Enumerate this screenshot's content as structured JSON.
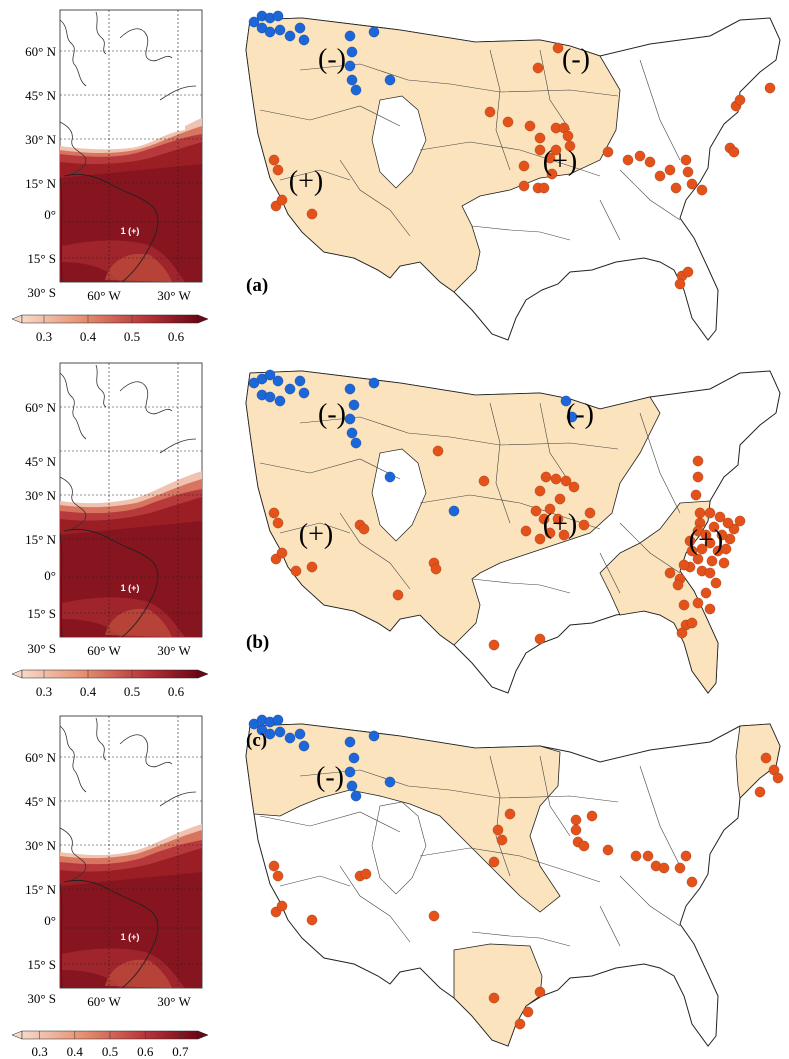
{
  "colors": {
    "basin_fill": "#fbe3bd",
    "negative_dot": "#1c66d8",
    "positive_dot": "#e3521b",
    "corr_low": "#f3cbbb",
    "corr_high": "#7a0a16"
  },
  "panels": [
    {
      "letter": "(a)",
      "lat_labels": [
        "60° N",
        "45° N",
        "30° N",
        "15° N",
        "0°",
        "15° S",
        "30° S"
      ],
      "lon_labels": [
        "60° W",
        "30° W"
      ],
      "region_label": "1 (+)",
      "colorbar_ticks": [
        "0.3",
        "0.4",
        "0.5",
        "0.6"
      ],
      "colorbar_range": [
        0.25,
        0.65
      ],
      "sign_labels": [
        "(-)",
        "(-)",
        "(+)",
        "(+)"
      ],
      "negative_sites": 17,
      "positive_sites": 42
    },
    {
      "letter": "(b)",
      "lat_labels": [
        "60° N",
        "45° N",
        "30° N",
        "15° N",
        "0°",
        "15° S",
        "30° S"
      ],
      "lon_labels": [
        "60° W",
        "30° W"
      ],
      "region_label": "1 (+)",
      "colorbar_ticks": [
        "0.3",
        "0.4",
        "0.5",
        "0.6"
      ],
      "colorbar_range": [
        0.25,
        0.65
      ],
      "sign_labels": [
        "(-)",
        "(-)",
        "(+)",
        "(+)",
        "(+)"
      ],
      "negative_sites": 20,
      "positive_sites": 70
    },
    {
      "letter": "(c)",
      "lat_labels": [
        "60° N",
        "45° N",
        "30° N",
        "15° N",
        "0°",
        "15° S",
        "30° S"
      ],
      "lon_labels": [
        "60° W",
        "30° W"
      ],
      "region_label": "1 (+)",
      "colorbar_ticks": [
        "0.3",
        "0.4",
        "0.5",
        "0.6",
        "0.7"
      ],
      "colorbar_range": [
        0.25,
        0.75
      ],
      "sign_labels": [
        "(-)"
      ],
      "negative_sites": 17,
      "positive_sites": 33
    }
  ]
}
